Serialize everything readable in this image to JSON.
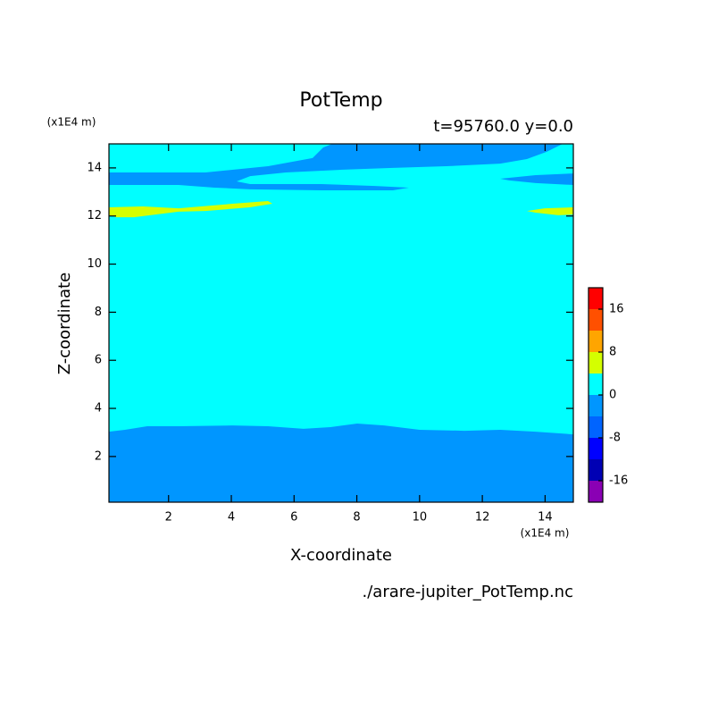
{
  "chart_data": {
    "type": "contour",
    "title": "PotTemp",
    "subtitle": "t=95760.0 y=0.0",
    "x_label": "X-coordinate",
    "y_label": "Z-coordinate",
    "x_unit": "(x1E4 m)",
    "y_unit": "(x1E4 m)",
    "source": "./arare-jupiter_PotTemp.nc",
    "xlim": [
      0.1,
      14.9
    ],
    "ylim": [
      0.1,
      15.0
    ],
    "xticks": [
      2,
      4,
      6,
      8,
      10,
      12,
      14
    ],
    "yticks": [
      2,
      4,
      6,
      8,
      10,
      12,
      14
    ],
    "colorbar": {
      "levels": [
        -20,
        -16,
        -12,
        -8,
        -4,
        0,
        4,
        8,
        12,
        16,
        20
      ],
      "colors": [
        "#8a00b4",
        "#0000b4",
        "#0000ff",
        "#0064ff",
        "#0096ff",
        "#00ffff",
        "#d4ff00",
        "#ffa500",
        "#ff5000",
        "#ff0000",
        "#ffb4b4"
      ],
      "ticks": [
        -16,
        -8,
        0,
        8,
        16
      ]
    },
    "regions": [
      {
        "range": [
          0,
          4
        ],
        "x": [
          0.1,
          14.9,
          14.9,
          0.1
        ],
        "z": [
          0.1,
          0.1,
          15.0,
          15.0
        ]
      },
      {
        "range": [
          -4,
          0
        ],
        "x": [
          0.1,
          0.61,
          1.32,
          2.32,
          4.03,
          5.17,
          6.3,
          7.16,
          8.01,
          8.87,
          10.0,
          11.43,
          12.57,
          13.7,
          14.9,
          14.9,
          0.1
        ],
        "z": [
          3.03,
          3.11,
          3.26,
          3.26,
          3.29,
          3.26,
          3.15,
          3.22,
          3.37,
          3.29,
          3.11,
          3.07,
          3.11,
          3.03,
          2.92,
          0.1,
          0.1
        ]
      },
      {
        "range": [
          -4,
          0
        ],
        "x": [
          0.1,
          3.17,
          5.17,
          6.59,
          6.93,
          7.22,
          14.56,
          14.05,
          13.42,
          12.57,
          10.86,
          9.15,
          7.44,
          5.74,
          4.6,
          4.17,
          4.6,
          6.87,
          8.58,
          9.66,
          9.15,
          6.87,
          4.6,
          3.46,
          2.32,
          0.1
        ],
        "z": [
          13.81,
          13.81,
          14.07,
          14.41,
          14.85,
          15.0,
          15.0,
          14.67,
          14.37,
          14.18,
          14.07,
          14.0,
          13.92,
          13.81,
          13.66,
          13.44,
          13.33,
          13.33,
          13.25,
          13.18,
          13.07,
          13.07,
          13.11,
          13.18,
          13.29,
          13.29
        ]
      },
      {
        "range": [
          -4,
          0
        ],
        "x": [
          12.57,
          13.7,
          14.9,
          14.9,
          13.7,
          12.85
        ],
        "z": [
          13.55,
          13.7,
          13.77,
          13.29,
          13.37,
          13.48
        ]
      },
      {
        "range": [
          4,
          8
        ],
        "x": [
          0.1,
          1.18,
          2.32,
          4.03,
          5.17,
          5.31,
          4.6,
          3.17,
          2.32,
          0.9,
          0.33,
          0.1
        ],
        "z": [
          12.36,
          12.4,
          12.32,
          12.51,
          12.62,
          12.51,
          12.36,
          12.21,
          12.18,
          11.95,
          11.95,
          12.03
        ]
      },
      {
        "range": [
          4,
          8
        ],
        "x": [
          13.42,
          13.99,
          14.9,
          14.9,
          14.42,
          13.7
        ],
        "z": [
          12.21,
          12.32,
          12.36,
          12.06,
          12.03,
          12.14
        ]
      }
    ]
  }
}
